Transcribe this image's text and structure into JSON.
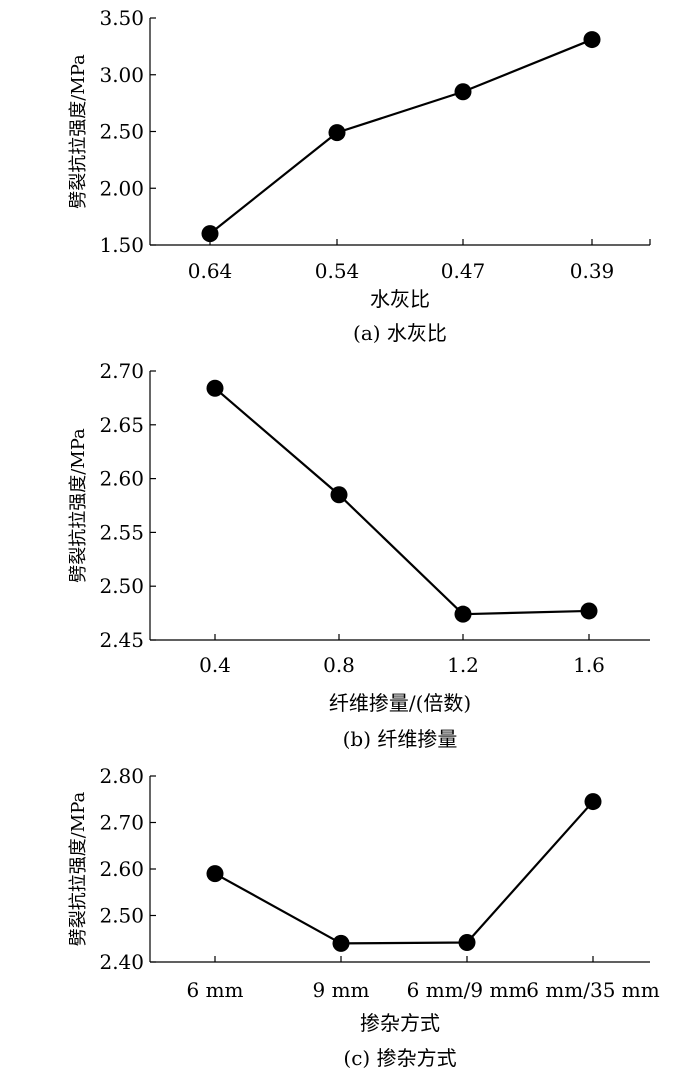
{
  "chart_data": [
    {
      "type": "line",
      "caption": "(a) 水灰比",
      "xlabel": "水灰比",
      "ylabel": "劈裂抗拉强度/MPa",
      "categories": [
        "0.64",
        "0.54",
        "0.47",
        "0.39"
      ],
      "series": [
        {
          "values": [
            1.6,
            2.49,
            2.85,
            3.31
          ]
        }
      ],
      "ylim": [
        1.5,
        3.5
      ],
      "yticks": [
        "1.50",
        "2.00",
        "2.50",
        "3.00",
        "3.50"
      ],
      "grid": false
    },
    {
      "type": "line",
      "caption": "(b) 纤维掺量",
      "xlabel": "纤维掺量/(倍数)",
      "ylabel": "劈裂抗拉强度/MPa",
      "categories": [
        "0.4",
        "0.8",
        "1.2",
        "1.6"
      ],
      "series": [
        {
          "values": [
            2.684,
            2.585,
            2.474,
            2.477
          ]
        }
      ],
      "ylim": [
        2.45,
        2.7
      ],
      "yticks": [
        "2.45",
        "2.50",
        "2.55",
        "2.60",
        "2.65",
        "2.70"
      ],
      "grid": false
    },
    {
      "type": "line",
      "caption": "(c) 掺杂方式",
      "xlabel": "掺杂方式",
      "ylabel": "劈裂抗拉强度/MPa",
      "categories": [
        "6 mm",
        "9 mm",
        "6 mm/9 mm",
        "6 mm/35 mm"
      ],
      "series": [
        {
          "values": [
            2.59,
            2.44,
            2.442,
            2.745
          ]
        }
      ],
      "ylim": [
        2.4,
        2.8
      ],
      "yticks": [
        "2.40",
        "2.50",
        "2.60",
        "2.70",
        "2.80"
      ],
      "grid": false
    }
  ]
}
